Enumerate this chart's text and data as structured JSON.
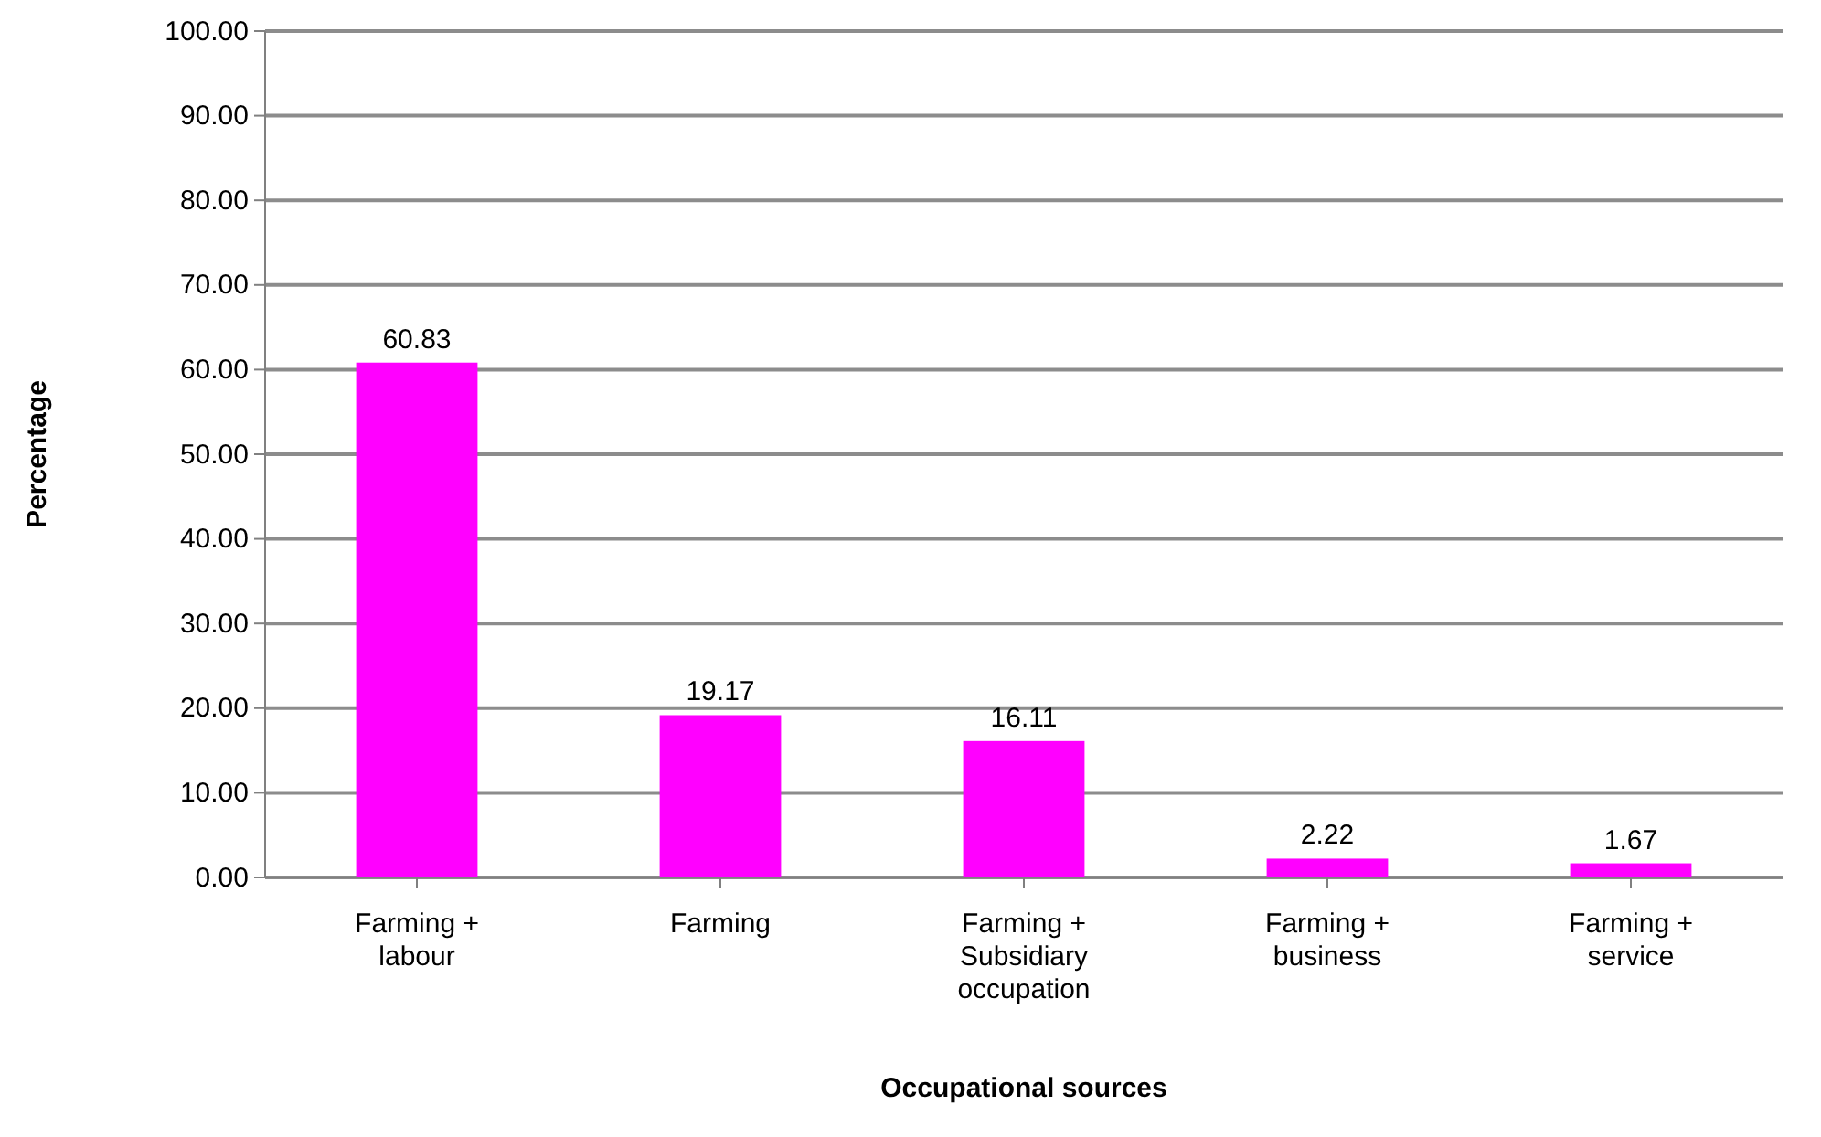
{
  "chart_data": {
    "type": "bar",
    "xlabel": "Occupational sources",
    "ylabel": "Percentage",
    "categories": [
      "Farming + labour",
      "Farming",
      "Farming + Subsidiary occupation",
      "Farming + business",
      "Farming + service"
    ],
    "values": [
      60.83,
      19.17,
      16.11,
      2.22,
      1.67
    ],
    "color": "#ff00ff",
    "ylim": [
      0,
      100
    ],
    "yticks": [
      {
        "value": 0,
        "label": "0.00"
      },
      {
        "value": 10,
        "label": "10.00"
      },
      {
        "value": 20,
        "label": "20.00"
      },
      {
        "value": 30,
        "label": "30.00"
      },
      {
        "value": 40,
        "label": "40.00"
      },
      {
        "value": 50,
        "label": "50.00"
      },
      {
        "value": 60,
        "label": "60.00"
      },
      {
        "value": 70,
        "label": "70.00"
      },
      {
        "value": 80,
        "label": "80.00"
      },
      {
        "value": 90,
        "label": "90.00"
      },
      {
        "value": 100,
        "label": "100.00"
      }
    ],
    "grid": "y",
    "data_labels": true
  }
}
